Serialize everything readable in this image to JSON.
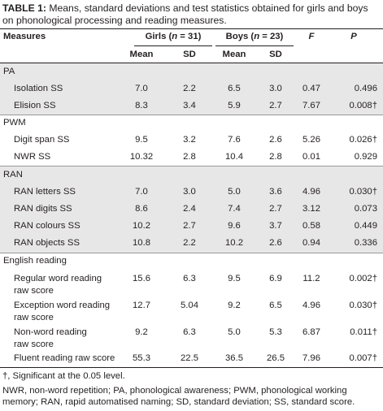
{
  "caption": {
    "label": "TABLE 1:",
    "text": "Means, standard deviations and test statistics obtained for girls and boys on phonological processing and reading measures."
  },
  "header": {
    "measures": "Measures",
    "girls": "Girls (n = 31)",
    "boys": "Boys (n = 23)",
    "f": "F",
    "p": "P",
    "mean": "Mean",
    "sd": "SD"
  },
  "groups": {
    "pa": "PA",
    "pwm": "PWM",
    "ran": "RAN",
    "english": "English reading"
  },
  "rows": [
    {
      "label": "Isolation SS",
      "gm": "7.0",
      "gs": "2.2",
      "bm": "6.5",
      "bs": "3.0",
      "f": "0.47",
      "p": "0.496"
    },
    {
      "label": "Elision SS",
      "gm": "8.3",
      "gs": "3.4",
      "bm": "5.9",
      "bs": "2.7",
      "f": "7.67",
      "p": "0.008†"
    },
    {
      "label": "Digit span SS",
      "gm": "9.5",
      "gs": "3.2",
      "bm": "7.6",
      "bs": "2.6",
      "f": "5.26",
      "p": "0.026†"
    },
    {
      "label": "NWR SS",
      "gm": "10.32",
      "gs": "2.8",
      "bm": "10.4",
      "bs": "2.8",
      "f": "0.01",
      "p": "0.929"
    },
    {
      "label": "RAN letters SS",
      "gm": "7.0",
      "gs": "3.0",
      "bm": "5.0",
      "bs": "3.6",
      "f": "4.96",
      "p": "0.030†"
    },
    {
      "label": "RAN digits SS",
      "gm": "8.6",
      "gs": "2.4",
      "bm": "7.4",
      "bs": "2.7",
      "f": "3.12",
      "p": "0.073"
    },
    {
      "label": "RAN colours SS",
      "gm": "10.2",
      "gs": "2.7",
      "bm": "9.6",
      "bs": "3.7",
      "f": "0.58",
      "p": "0.449"
    },
    {
      "label": "RAN objects SS",
      "gm": "10.8",
      "gs": "2.2",
      "bm": "10.2",
      "bs": "2.6",
      "f": "0.94",
      "p": "0.336"
    },
    {
      "label1": "Regular word reading",
      "label2": "raw score",
      "gm": "15.6",
      "gs": "6.3",
      "bm": "9.5",
      "bs": "6.9",
      "f": "11.2",
      "p": "0.002†"
    },
    {
      "label1": "Exception word reading",
      "label2": "raw score",
      "gm": "12.7",
      "gs": "5.04",
      "bm": "9.2",
      "bs": "6.5",
      "f": "4.96",
      "p": "0.030†"
    },
    {
      "label1": "Non-word reading",
      "label2": "raw score",
      "gm": "9.2",
      "gs": "6.3",
      "bm": "5.0",
      "bs": "5.3",
      "f": "6.87",
      "p": "0.011†"
    },
    {
      "label": "Fluent reading raw score",
      "gm": "55.3",
      "gs": "22.5",
      "bm": "36.5",
      "bs": "26.5",
      "f": "7.96",
      "p": "0.007†"
    }
  ],
  "notes": {
    "significance": "†, Significant at the 0.05 level.",
    "abbreviations": "NWR, non-word repetition; PA, phonological awareness; PWM, phonological working memory; RAN, rapid automatised naming; SD, standard deviation; SS, standard score."
  }
}
